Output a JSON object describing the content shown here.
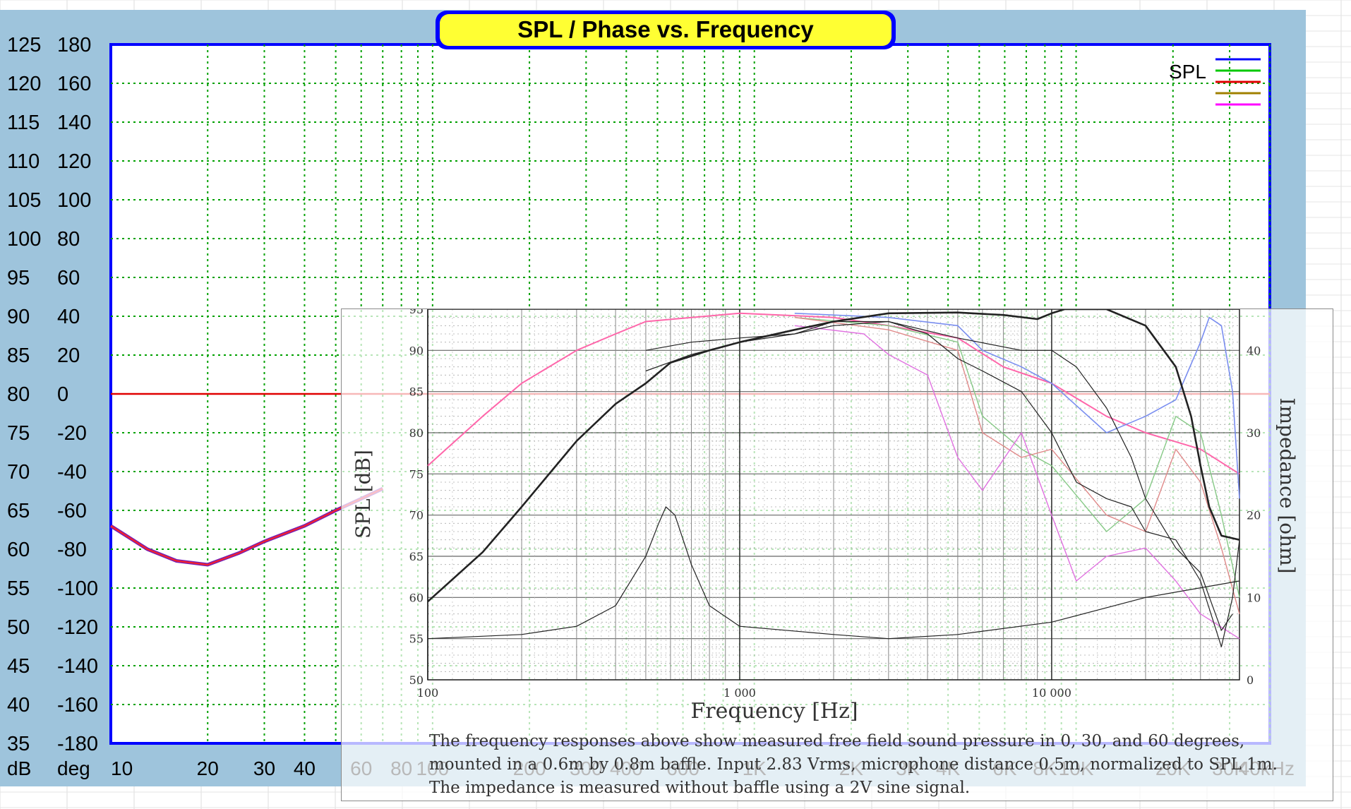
{
  "outer_chart": {
    "title": "SPL / Phase vs. Frequency",
    "legend_label": "SPL",
    "legend_colors": [
      "#0000ff",
      "#00c800",
      "#e00000",
      "#a08000",
      "#ff00ff"
    ],
    "left_axis_unit": "dB",
    "right_axis_unit": "deg",
    "db_ticks": [
      "125",
      "120",
      "115",
      "110",
      "105",
      "100",
      "95",
      "90",
      "85",
      "80",
      "75",
      "70",
      "65",
      "60",
      "55",
      "50",
      "45",
      "40",
      "35"
    ],
    "deg_ticks": [
      "180",
      "160",
      "140",
      "120",
      "100",
      "80",
      "60",
      "40",
      "20",
      "0",
      "-20",
      "-40",
      "-60",
      "-80",
      "-100",
      "-120",
      "-140",
      "-160",
      "-180"
    ],
    "freq_ticks": [
      {
        "f": 10,
        "label": "10"
      },
      {
        "f": 20,
        "label": "20"
      },
      {
        "f": 30,
        "label": "30"
      },
      {
        "f": 40,
        "label": "40"
      },
      {
        "f": 60,
        "label": "60"
      },
      {
        "f": 80,
        "label": "80"
      },
      {
        "f": 100,
        "label": "100"
      },
      {
        "f": 200,
        "label": "200"
      },
      {
        "f": 300,
        "label": "300"
      },
      {
        "f": 400,
        "label": "400"
      },
      {
        "f": 600,
        "label": "600"
      },
      {
        "f": 1000,
        "label": "1K"
      },
      {
        "f": 2000,
        "label": "2K"
      },
      {
        "f": 3000,
        "label": "3K"
      },
      {
        "f": 4000,
        "label": "4K"
      },
      {
        "f": 6000,
        "label": "6K"
      },
      {
        "f": 8000,
        "label": "8K"
      },
      {
        "f": 10000,
        "label": "10K"
      },
      {
        "f": 20000,
        "label": "20K"
      },
      {
        "f": 30000,
        "label": "30K"
      },
      {
        "f": 40000,
        "label": "40kHz"
      }
    ],
    "colors": {
      "frame": "#9ec4dc",
      "plot_border": "#0000ff",
      "grid": "#00a000",
      "title_bg": "#ffff33",
      "phase_line": "#e00000"
    }
  },
  "chart_data": {
    "type": "line",
    "xlabel": "Frequency [Hz]",
    "ylabel": "SPL [dB]",
    "y2label": "Impedance [ohm]",
    "xscale": "log",
    "xlim": [
      100,
      40000
    ],
    "ylim": [
      50,
      95
    ],
    "y2lim": [
      0,
      45
    ],
    "x_ticks": [
      {
        "v": 100,
        "label": "100"
      },
      {
        "v": 1000,
        "label": "1 000"
      },
      {
        "v": 10000,
        "label": "10 000"
      }
    ],
    "y_ticks": [
      "50",
      "55",
      "60",
      "65",
      "70",
      "75",
      "80",
      "85",
      "90",
      "95"
    ],
    "y2_ticks": [
      "0",
      "10",
      "20",
      "30",
      "40"
    ],
    "series": [
      {
        "role": "spl_0deg",
        "color": "#222222",
        "width": 2.6,
        "points": [
          [
            100,
            59.5
          ],
          [
            150,
            65.5
          ],
          [
            200,
            71
          ],
          [
            300,
            79
          ],
          [
            400,
            83.5
          ],
          [
            500,
            86
          ],
          [
            600,
            88.5
          ],
          [
            800,
            90
          ],
          [
            1000,
            91
          ],
          [
            1500,
            92.5
          ],
          [
            2000,
            93.5
          ],
          [
            3000,
            94.5
          ],
          [
            5000,
            94.6
          ],
          [
            7000,
            94.3
          ],
          [
            9000,
            93.8
          ],
          [
            10000,
            94.5
          ],
          [
            11000,
            95
          ],
          [
            15000,
            95
          ],
          [
            20000,
            93
          ],
          [
            25000,
            88
          ],
          [
            28000,
            82
          ],
          [
            30000,
            76
          ],
          [
            32000,
            71
          ],
          [
            35000,
            67.5
          ],
          [
            40000,
            67
          ]
        ]
      },
      {
        "role": "spl_30deg",
        "color": "#222222",
        "width": 1.2,
        "points": [
          [
            500,
            87.5
          ],
          [
            700,
            89.5
          ],
          [
            1000,
            91
          ],
          [
            1500,
            92
          ],
          [
            2000,
            93
          ],
          [
            3000,
            93.5
          ],
          [
            4000,
            92
          ],
          [
            5000,
            89
          ],
          [
            6000,
            87.5
          ],
          [
            8000,
            85
          ],
          [
            10000,
            80
          ],
          [
            12000,
            74
          ],
          [
            15000,
            72
          ],
          [
            18000,
            71
          ],
          [
            20000,
            68
          ],
          [
            25000,
            67
          ],
          [
            30000,
            62
          ],
          [
            35000,
            54
          ],
          [
            38000,
            60
          ],
          [
            40000,
            67
          ]
        ]
      },
      {
        "role": "spl_60deg",
        "color": "#222222",
        "width": 1.2,
        "points": [
          [
            500,
            90
          ],
          [
            700,
            91
          ],
          [
            1000,
            91.5
          ],
          [
            1500,
            92
          ],
          [
            2000,
            93.5
          ],
          [
            3000,
            93.5
          ],
          [
            5000,
            91.5
          ],
          [
            8000,
            90
          ],
          [
            10000,
            90
          ],
          [
            12000,
            88
          ],
          [
            15000,
            83
          ],
          [
            18000,
            77
          ],
          [
            20000,
            72
          ],
          [
            25000,
            66
          ],
          [
            30000,
            63
          ],
          [
            35000,
            56
          ],
          [
            38000,
            58
          ]
        ]
      },
      {
        "role": "impedance",
        "axis": "right",
        "color": "#222222",
        "width": 1.2,
        "points": [
          [
            100,
            5
          ],
          [
            200,
            5.5
          ],
          [
            300,
            6.5
          ],
          [
            400,
            9
          ],
          [
            500,
            15
          ],
          [
            550,
            19
          ],
          [
            580,
            21
          ],
          [
            620,
            20
          ],
          [
            700,
            14
          ],
          [
            800,
            9
          ],
          [
            1000,
            6.5
          ],
          [
            2000,
            5.5
          ],
          [
            3000,
            5
          ],
          [
            5000,
            5.5
          ],
          [
            10000,
            7
          ],
          [
            20000,
            10
          ],
          [
            40000,
            12
          ]
        ]
      },
      {
        "role": "outer_spl_overlay",
        "color": "#ff66aa",
        "width": 2,
        "points": [
          [
            100,
            76
          ],
          [
            150,
            82
          ],
          [
            200,
            86
          ],
          [
            300,
            90
          ],
          [
            400,
            92
          ],
          [
            500,
            93.5
          ],
          [
            700,
            94
          ],
          [
            1000,
            94.5
          ],
          [
            2000,
            94
          ],
          [
            3000,
            93
          ],
          [
            5000,
            91.5
          ],
          [
            7000,
            88
          ],
          [
            10000,
            86
          ],
          [
            15000,
            82
          ],
          [
            20000,
            80
          ],
          [
            30000,
            78
          ],
          [
            40000,
            75
          ]
        ]
      },
      {
        "role": "outer_overlay_blue",
        "color": "#7a8ef0",
        "width": 1.6,
        "points": [
          [
            1500,
            94.5
          ],
          [
            3000,
            94
          ],
          [
            5000,
            93
          ],
          [
            6000,
            90
          ],
          [
            8000,
            88
          ],
          [
            10000,
            86
          ],
          [
            15000,
            80
          ],
          [
            20000,
            82
          ],
          [
            25000,
            84
          ],
          [
            30000,
            91
          ],
          [
            32000,
            94
          ],
          [
            35000,
            93
          ],
          [
            38000,
            85
          ],
          [
            40000,
            72
          ]
        ]
      },
      {
        "role": "outer_overlay_green",
        "color": "#86c986",
        "width": 1.4,
        "points": [
          [
            1500,
            94
          ],
          [
            3000,
            93
          ],
          [
            5000,
            91
          ],
          [
            6000,
            82
          ],
          [
            8000,
            78
          ],
          [
            10000,
            76
          ],
          [
            15000,
            68
          ],
          [
            20000,
            72
          ],
          [
            25000,
            82
          ],
          [
            30000,
            80
          ],
          [
            35000,
            70
          ],
          [
            40000,
            60
          ]
        ]
      },
      {
        "role": "outer_overlay_red",
        "color": "#e08a8a",
        "width": 1.4,
        "points": [
          [
            1500,
            94
          ],
          [
            3000,
            92.5
          ],
          [
            5000,
            90
          ],
          [
            6000,
            80
          ],
          [
            8000,
            77
          ],
          [
            10000,
            78
          ],
          [
            15000,
            70
          ],
          [
            20000,
            68
          ],
          [
            25000,
            78
          ],
          [
            30000,
            74
          ],
          [
            35000,
            66
          ],
          [
            40000,
            58
          ]
        ]
      },
      {
        "role": "outer_overlay_magenta",
        "color": "#e070e0",
        "width": 1.4,
        "points": [
          [
            1500,
            93
          ],
          [
            2500,
            92
          ],
          [
            3000,
            89.5
          ],
          [
            4000,
            87
          ],
          [
            5000,
            77
          ],
          [
            6000,
            73
          ],
          [
            8000,
            80
          ],
          [
            10000,
            70
          ],
          [
            12000,
            62
          ],
          [
            15000,
            65
          ],
          [
            20000,
            66
          ],
          [
            25000,
            62
          ],
          [
            30000,
            58
          ],
          [
            40000,
            55
          ]
        ]
      }
    ],
    "outer_overlay": {
      "phase_line_deg": 0,
      "spl_low_points": [
        [
          10,
          63
        ],
        [
          13,
          60
        ],
        [
          16,
          58.5
        ],
        [
          20,
          58
        ],
        [
          25,
          59.5
        ],
        [
          30,
          61
        ],
        [
          40,
          63
        ],
        [
          50,
          65
        ],
        [
          60,
          66.5
        ],
        [
          70,
          67.8
        ]
      ]
    },
    "caption": "The frequency responses above show measured free field sound pressure in 0, 30, and 60 degrees, mounted in a 0.6m by 0.8m baffle. Input 2.83 Vrms, microphone distance 0.5m, normalized to SPL 1m. The impedance is measured without baffle using a 2V sine signal."
  }
}
